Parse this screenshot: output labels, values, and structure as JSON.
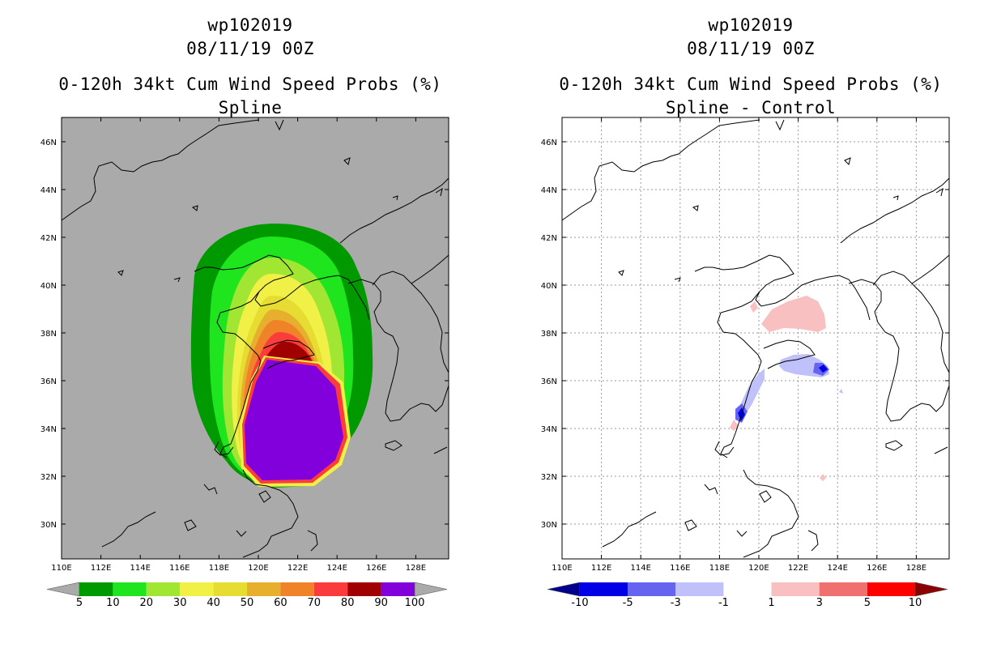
{
  "panels": [
    {
      "title_id": "wp102019",
      "title_date": "08/11/19 00Z",
      "title_product": "0-120h 34kt Cum Wind Speed Probs (%)",
      "title_method": "Spline",
      "background": "#aaaaaa",
      "colorbar": {
        "labels": [
          "5",
          "10",
          "20",
          "30",
          "40",
          "50",
          "60",
          "70",
          "80",
          "90",
          "100"
        ],
        "colors": [
          "#009a00",
          "#1ee51e",
          "#a0e632",
          "#f0f046",
          "#e6dc32",
          "#e6af2d",
          "#f08228",
          "#fa3c3c",
          "#a00000",
          "#8200dc"
        ],
        "end_low": "#aaaaaa",
        "end_high": "#aaaaaa"
      }
    },
    {
      "title_id": "wp102019",
      "title_date": "08/11/19 00Z",
      "title_product": "0-120h 34kt Cum Wind Speed Probs (%)",
      "title_method": "Spline - Control",
      "background": "#ffffff",
      "colorbar": {
        "labels": [
          "-10",
          "-5",
          "-3",
          "-1",
          "1",
          "3",
          "5",
          "10"
        ],
        "colors": [
          "#0000e6",
          "#6464f0",
          "#c0c0fa",
          "#ffffff",
          "#f8c0c0",
          "#f07070",
          "#ff0000"
        ],
        "end_low": "#00008c",
        "end_high": "#8c0000"
      }
    }
  ],
  "axes": {
    "lon_labels": [
      "110E",
      "112E",
      "114E",
      "116E",
      "118E",
      "120E",
      "122E",
      "124E",
      "126E",
      "128E"
    ],
    "lat_labels": [
      "30N",
      "32N",
      "34N",
      "36N",
      "38N",
      "40N",
      "42N",
      "44N",
      "46N"
    ]
  }
}
